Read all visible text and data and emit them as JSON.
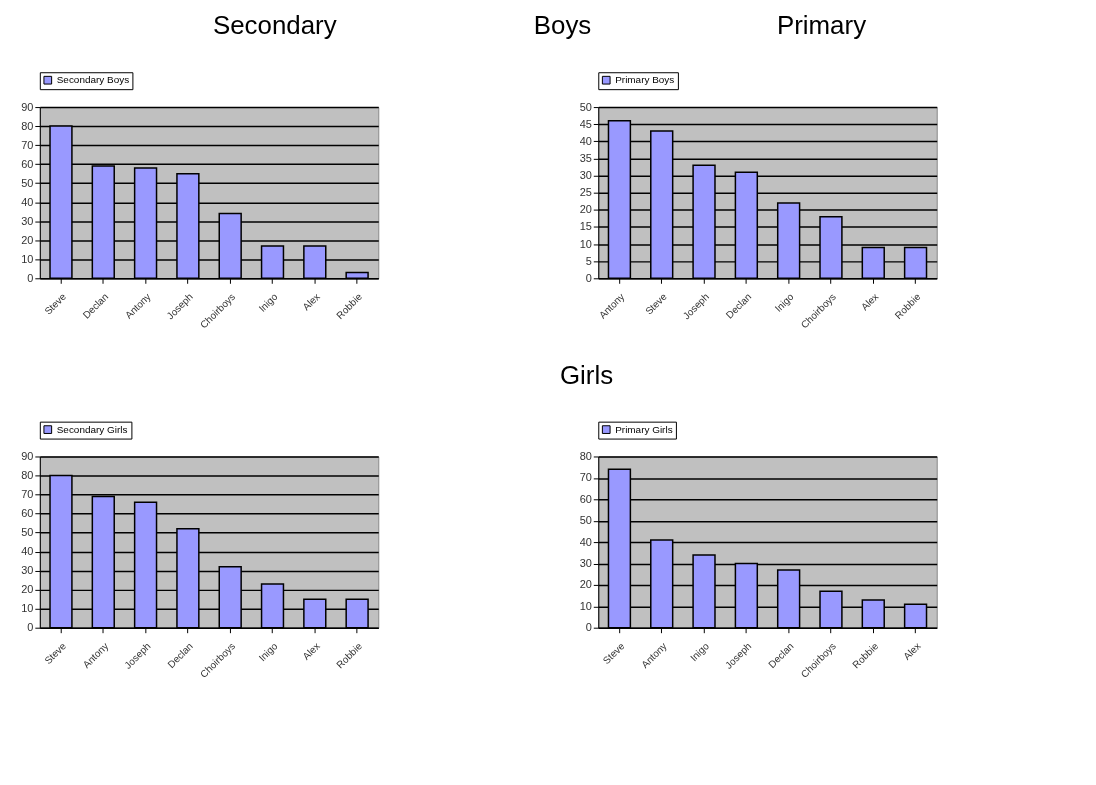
{
  "chart_data": [
    {
      "type": "other",
      "annotations": [
        "Secondary",
        "Boys",
        "Primary",
        "Girls"
      ]
    },
    {
      "type": "bar",
      "categories": [
        "Steve",
        "Declan",
        "Antony",
        "Joseph",
        "Choirboys",
        "Inigo",
        "Alex",
        "Robbie"
      ],
      "series": [
        {
          "name": "Secondary Boys",
          "color": "#9999ff",
          "values": [
            80,
            59,
            58,
            55,
            34,
            17,
            17,
            3
          ]
        }
      ],
      "ylim": [
        0,
        90
      ],
      "yticks": [
        0,
        10,
        20,
        30,
        40,
        50,
        60,
        70,
        80,
        90
      ],
      "grid": "y",
      "legend": "top"
    },
    {
      "type": "bar",
      "categories": [
        "Antony",
        "Steve",
        "Joseph",
        "Declan",
        "Inigo",
        "Choirboys",
        "Alex",
        "Robbie"
      ],
      "series": [
        {
          "name": "Primary Boys",
          "color": "#9999ff",
          "values": [
            46,
            43,
            33,
            31,
            22,
            18,
            9,
            9
          ]
        }
      ],
      "ylim": [
        0,
        50
      ],
      "yticks": [
        0,
        5,
        10,
        15,
        20,
        25,
        30,
        35,
        40,
        45,
        50
      ],
      "grid": "y",
      "legend": "top"
    },
    {
      "type": "bar",
      "categories": [
        "Steve",
        "Antony",
        "Joseph",
        "Declan",
        "Choirboys",
        "Inigo",
        "Alex",
        "Robbie"
      ],
      "series": [
        {
          "name": "Secondary Girls",
          "color": "#9999ff",
          "values": [
            80,
            69,
            66,
            52,
            32,
            23,
            15,
            15
          ]
        }
      ],
      "ylim": [
        0,
        90
      ],
      "yticks": [
        0,
        10,
        20,
        30,
        40,
        50,
        60,
        70,
        80,
        90
      ],
      "grid": "y",
      "legend": "top"
    },
    {
      "type": "bar",
      "categories": [
        "Steve",
        "Antony",
        "Inigo",
        "Joseph",
        "Declan",
        "Choirboys",
        "Robbie",
        "Alex"
      ],
      "series": [
        {
          "name": "Primary Girls",
          "color": "#9999ff",
          "values": [
            74,
            41,
            34,
            30,
            27,
            17,
            13,
            11
          ]
        }
      ],
      "ylim": [
        0,
        80
      ],
      "yticks": [
        0,
        10,
        20,
        30,
        40,
        50,
        60,
        70,
        80
      ],
      "grid": "y",
      "legend": "top"
    }
  ]
}
